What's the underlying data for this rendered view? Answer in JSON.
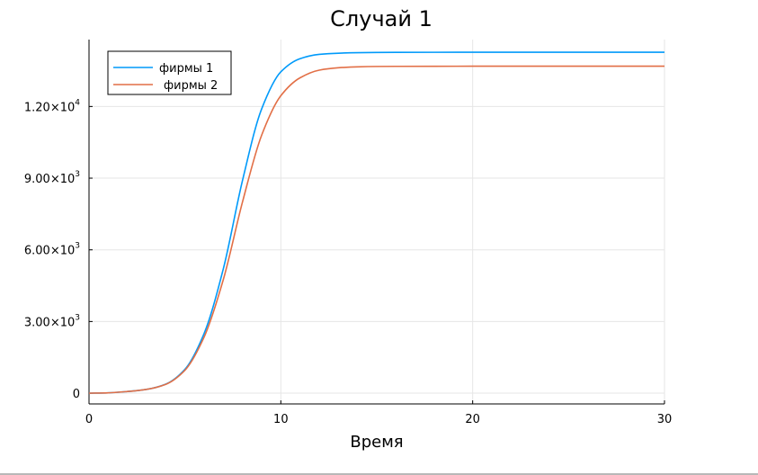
{
  "chart_data": {
    "type": "line",
    "title": "Случай 1",
    "xlabel": "Время",
    "ylabel": "",
    "xlim": [
      0,
      30
    ],
    "ylim": [
      -450,
      14800
    ],
    "grid": true,
    "legend_position": "top-left",
    "x_ticks": [
      {
        "value": 0,
        "label": "0"
      },
      {
        "value": 10,
        "label": "10"
      },
      {
        "value": 20,
        "label": "20"
      },
      {
        "value": 30,
        "label": "30"
      }
    ],
    "y_ticks": [
      {
        "value": 0,
        "mantissa": "0",
        "exp": ""
      },
      {
        "value": 3000,
        "mantissa": "3.00×10",
        "exp": "3"
      },
      {
        "value": 6000,
        "mantissa": "6.00×10",
        "exp": "3"
      },
      {
        "value": 9000,
        "mantissa": "9.00×10",
        "exp": "3"
      },
      {
        "value": 12000,
        "mantissa": "1.20×10",
        "exp": "4"
      }
    ],
    "x": [
      0,
      1,
      2,
      3,
      4,
      5,
      6,
      7,
      8,
      9,
      10,
      11,
      12,
      13,
      14,
      15,
      16,
      18,
      20,
      22,
      25,
      28,
      30
    ],
    "series": [
      {
        "name": "фирмы 1",
        "color": "#009AFA",
        "values": [
          0,
          15,
          70,
          160,
          380,
          1000,
          2500,
          5200,
          8900,
          11900,
          13450,
          14000,
          14180,
          14230,
          14250,
          14260,
          14265,
          14268,
          14270,
          14270,
          14270,
          14270,
          14270
        ]
      },
      {
        "name": "фирмы 2",
        "color": "#E26F46",
        "values": [
          0,
          15,
          70,
          160,
          370,
          960,
          2350,
          4750,
          8000,
          10800,
          12450,
          13200,
          13520,
          13620,
          13660,
          13675,
          13680,
          13683,
          13685,
          13685,
          13685,
          13685,
          13685
        ]
      }
    ]
  }
}
